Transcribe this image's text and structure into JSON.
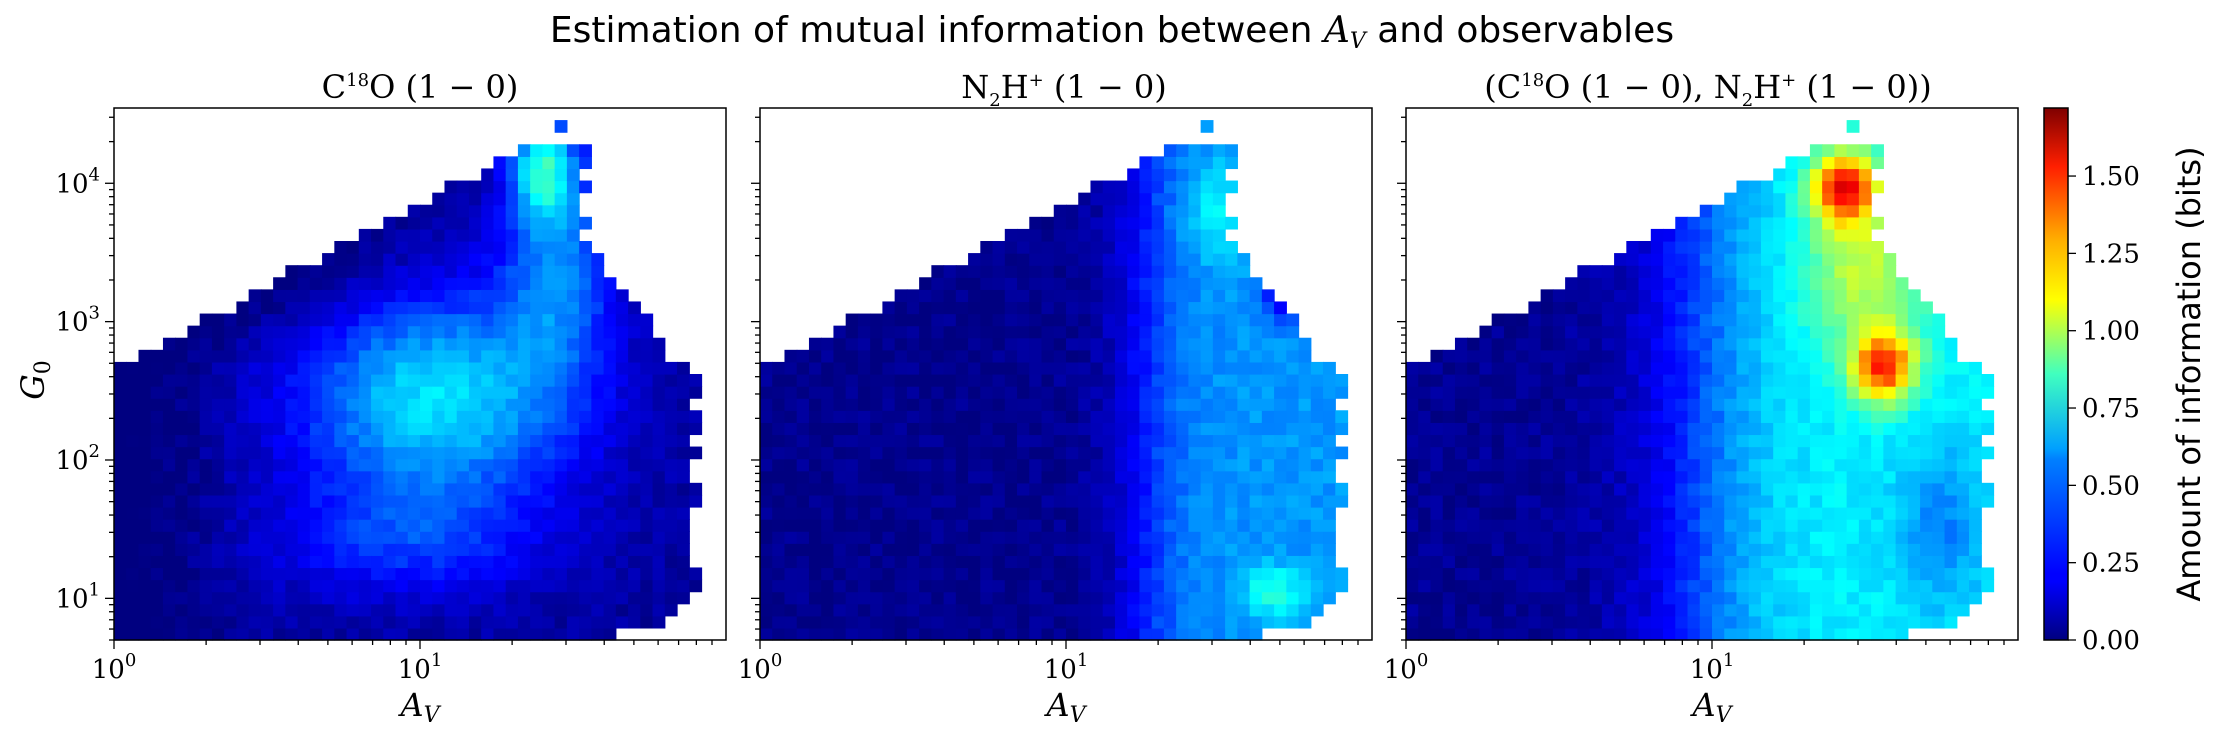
{
  "figure": {
    "suptitle": "Estimation of mutual information between A_V and observables"
  },
  "chart_data": [
    {
      "type": "heatmap",
      "title": "C18O (1−0)",
      "xlabel": "A_V",
      "ylabel": "G_0",
      "xscale": "log",
      "yscale": "log",
      "xlim": [
        1,
        100
      ],
      "ylim": [
        5,
        35000
      ],
      "x_ticks": [
        "10^0",
        "10^1"
      ],
      "y_ticks": [
        "10^1",
        "10^2",
        "10^3",
        "10^4"
      ],
      "features": [
        {
          "label": "local peak",
          "A_V": 11,
          "G_0": 270,
          "value_bits": 0.7
        },
        {
          "label": "upper plume",
          "A_V": 25,
          "G_0": 8000,
          "value_bits": 0.95
        }
      ]
    },
    {
      "type": "heatmap",
      "title": "N2H+ (1−0)",
      "xlabel": "A_V",
      "xscale": "log",
      "yscale": "log",
      "xlim": [
        1,
        100
      ],
      "ylim": [
        5,
        35000
      ],
      "x_ticks": [
        "10^0",
        "10^1"
      ],
      "features": [
        {
          "label": "high-A_V band",
          "A_V": 30,
          "G_0": 500,
          "value_bits": 0.65
        },
        {
          "label": "lower-right spot",
          "A_V": 50,
          "G_0": 10,
          "value_bits": 0.85
        }
      ]
    },
    {
      "type": "heatmap",
      "title": "(C18O (1−0), N2H+ (1−0))",
      "xlabel": "A_V",
      "xscale": "log",
      "yscale": "log",
      "xlim": [
        1,
        100
      ],
      "ylim": [
        5,
        35000
      ],
      "x_ticks": [
        "10^0",
        "10^1"
      ],
      "features": [
        {
          "label": "peak 1",
          "A_V": 27,
          "G_0": 9500,
          "value_bits": 1.5
        },
        {
          "label": "peak 2",
          "A_V": 36,
          "G_0": 480,
          "value_bits": 1.45
        }
      ]
    }
  ],
  "colorbar": {
    "label": "Amount of information (bits)",
    "colormap": "jet",
    "min": 0,
    "max": 1.72,
    "ticks": [
      "0.00",
      "0.25",
      "0.50",
      "0.75",
      "1.00",
      "1.25",
      "1.50"
    ],
    "tick_values": [
      0,
      0.25,
      0.5,
      0.75,
      1.0,
      1.25,
      1.5
    ]
  }
}
